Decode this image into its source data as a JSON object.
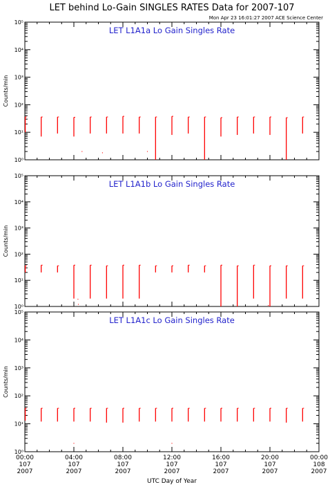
{
  "figure": {
    "title": "LET behind Lo-Gain SINGLES RATES Data for 2007-107",
    "timestamp": "Mon Apr 23 16:01:27 2007 ACE Science Center",
    "ylabel": "Counts/min",
    "xlabel": "UTC Day of Year",
    "colors": {
      "data": "#ff0000",
      "panel_title": "#2222cc",
      "axis": "#000000"
    }
  },
  "x_ticks": [
    {
      "time": "00:00",
      "day": "107",
      "year": "2007"
    },
    {
      "time": "04:00",
      "day": "107",
      "year": "2007"
    },
    {
      "time": "08:00",
      "day": "107",
      "year": "2007"
    },
    {
      "time": "12:00",
      "day": "107",
      "year": "2007"
    },
    {
      "time": "16:00",
      "day": "107",
      "year": "2007"
    },
    {
      "time": "20:00",
      "day": "107",
      "year": "2007"
    },
    {
      "time": "00:00",
      "day": "108",
      "year": "2007"
    }
  ],
  "chart_data": [
    {
      "type": "scatter",
      "title": "LET L1A1a Lo Gain Singles Rate",
      "ylabel": "Counts/min",
      "y_scale": "log",
      "ylim": [
        1,
        100000
      ],
      "xlim_hours": [
        0,
        24
      ],
      "y_tick_labels": [
        "10⁰",
        "10¹",
        "10²",
        "10³",
        "10⁴",
        "10⁵"
      ],
      "bursts": [
        {
          "t": 0.05,
          "top": 36,
          "bottom": 10
        },
        {
          "t": 2.0,
          "top": 36,
          "bottom": 7
        },
        {
          "t": 4.0,
          "top": 36,
          "bottom": 9
        },
        {
          "t": 6.0,
          "top": 35,
          "bottom": 7
        },
        {
          "t": 8.0,
          "top": 36,
          "bottom": 9
        },
        {
          "t": 10.0,
          "top": 36,
          "bottom": 9
        },
        {
          "t": 12.0,
          "top": 38,
          "bottom": 9
        },
        {
          "t": 14.0,
          "top": 36,
          "bottom": 9
        },
        {
          "t": 16.0,
          "top": 36,
          "bottom": 1
        },
        {
          "t": 18.0,
          "top": 38,
          "bottom": 8
        },
        {
          "t": 20.0,
          "top": 36,
          "bottom": 9
        },
        {
          "t": 22.0,
          "top": 36,
          "bottom": 1
        },
        {
          "t": 24.0,
          "top": 34,
          "bottom": 7
        },
        {
          "t": 26.0,
          "top": 36,
          "bottom": 8
        },
        {
          "t": 28.0,
          "top": 36,
          "bottom": 9
        },
        {
          "t": 30.0,
          "top": 36,
          "bottom": 8
        },
        {
          "t": 32.0,
          "top": 34,
          "bottom": 1
        },
        {
          "t": 34.0,
          "top": 36,
          "bottom": 9
        }
      ],
      "dots": [
        {
          "t": 7.0,
          "v": 2
        },
        {
          "t": 9.5,
          "v": 1.8
        },
        {
          "t": 15.0,
          "v": 2
        }
      ]
    },
    {
      "type": "scatter",
      "title": "LET L1A1b Lo Gain Singles Rate",
      "ylabel": "Counts/min",
      "y_scale": "log",
      "ylim": [
        1,
        100000
      ],
      "xlim_hours": [
        0,
        24
      ],
      "y_tick_labels": [
        "10⁰",
        "10¹",
        "10²",
        "10³",
        "10⁴",
        "10⁵"
      ],
      "bursts": [
        {
          "t": 0.05,
          "top": 36,
          "bottom": 20
        },
        {
          "t": 2.0,
          "top": 38,
          "bottom": 20
        },
        {
          "t": 4.0,
          "top": 36,
          "bottom": 20
        },
        {
          "t": 6.0,
          "top": 38,
          "bottom": 2
        },
        {
          "t": 8.0,
          "top": 38,
          "bottom": 2
        },
        {
          "t": 10.0,
          "top": 36,
          "bottom": 2
        },
        {
          "t": 12.0,
          "top": 38,
          "bottom": 2
        },
        {
          "t": 14.0,
          "top": 38,
          "bottom": 2
        },
        {
          "t": 16.0,
          "top": 36,
          "bottom": 20
        },
        {
          "t": 18.0,
          "top": 36,
          "bottom": 20
        },
        {
          "t": 20.0,
          "top": 38,
          "bottom": 20
        },
        {
          "t": 22.0,
          "top": 36,
          "bottom": 20
        },
        {
          "t": 24.0,
          "top": 38,
          "bottom": 1
        },
        {
          "t": 26.0,
          "top": 36,
          "bottom": 1
        },
        {
          "t": 28.0,
          "top": 38,
          "bottom": 2
        },
        {
          "t": 30.0,
          "top": 36,
          "bottom": 1
        },
        {
          "t": 32.0,
          "top": 36,
          "bottom": 2
        },
        {
          "t": 34.0,
          "top": 36,
          "bottom": 2
        }
      ],
      "dots": [
        {
          "t": 6.5,
          "v": 1.9
        },
        {
          "t": 6.55,
          "v": 1.2
        },
        {
          "t": 29.8,
          "v": 1.1
        }
      ]
    },
    {
      "type": "scatter",
      "title": "LET L1A1c Lo Gain Singles Rate",
      "ylabel": "Counts/min",
      "y_scale": "log",
      "ylim": [
        1,
        100000
      ],
      "xlim_hours": [
        0,
        24
      ],
      "y_tick_labels": [
        "10⁰",
        "10¹",
        "10²",
        "10³",
        "10⁴",
        "10⁵"
      ],
      "bursts": [
        {
          "t": 0.05,
          "top": 36,
          "bottom": 13
        },
        {
          "t": 2.0,
          "top": 36,
          "bottom": 12
        },
        {
          "t": 4.0,
          "top": 36,
          "bottom": 12
        },
        {
          "t": 6.0,
          "top": 36,
          "bottom": 12
        },
        {
          "t": 8.0,
          "top": 36,
          "bottom": 12
        },
        {
          "t": 10.0,
          "top": 36,
          "bottom": 11
        },
        {
          "t": 12.0,
          "top": 36,
          "bottom": 11
        },
        {
          "t": 14.0,
          "top": 36,
          "bottom": 12
        },
        {
          "t": 16.0,
          "top": 36,
          "bottom": 12
        },
        {
          "t": 18.0,
          "top": 36,
          "bottom": 12
        },
        {
          "t": 20.0,
          "top": 36,
          "bottom": 12
        },
        {
          "t": 22.0,
          "top": 36,
          "bottom": 12
        },
        {
          "t": 24.0,
          "top": 36,
          "bottom": 12
        },
        {
          "t": 26.0,
          "top": 36,
          "bottom": 12
        },
        {
          "t": 28.0,
          "top": 36,
          "bottom": 12
        },
        {
          "t": 30.0,
          "top": 36,
          "bottom": 12
        },
        {
          "t": 32.0,
          "top": 36,
          "bottom": 11
        },
        {
          "t": 34.0,
          "top": 36,
          "bottom": 12
        }
      ],
      "dots": [
        {
          "t": 6.0,
          "v": 2
        },
        {
          "t": 18.0,
          "v": 2
        }
      ]
    }
  ]
}
